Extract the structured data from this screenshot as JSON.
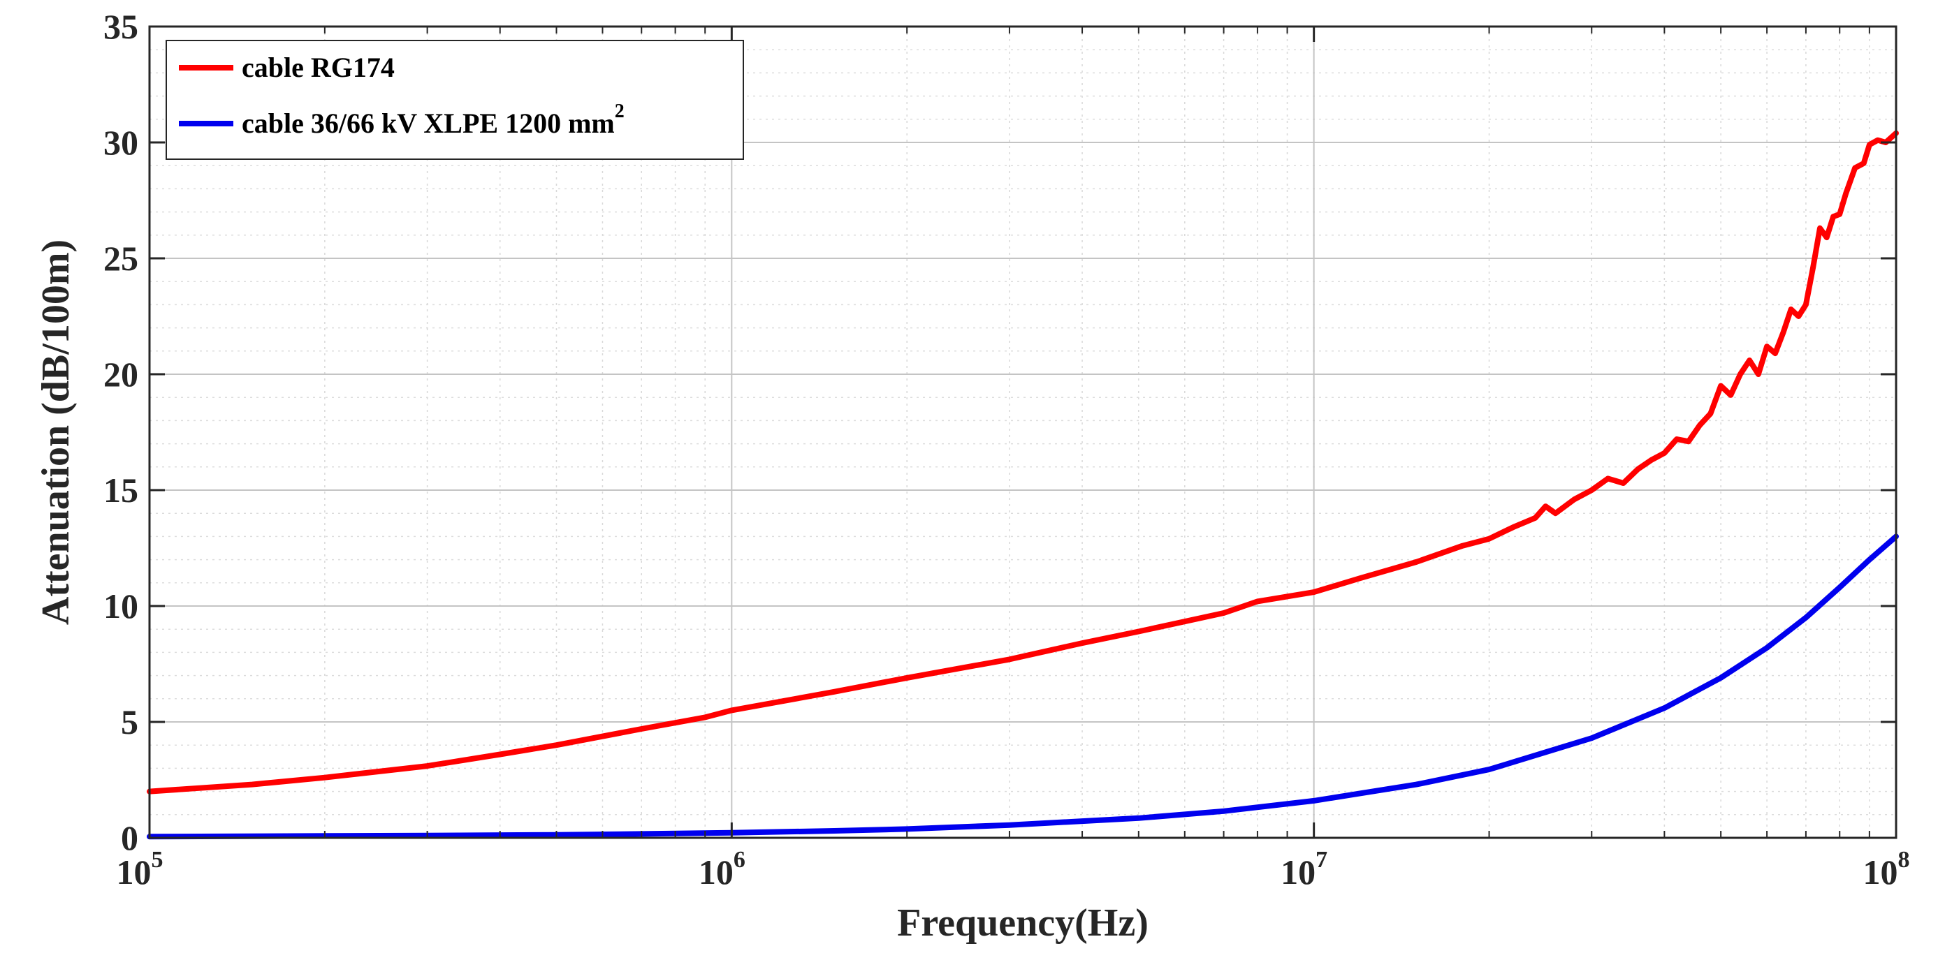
{
  "chart_data": {
    "type": "line",
    "xscale": "log",
    "xlim": [
      100000,
      100000000
    ],
    "ylim": [
      0,
      35
    ],
    "xlabel": "Frequency(Hz)",
    "ylabel": "Attenuation (dB/100m)",
    "grid": "major+minor",
    "legend_position": "top-left",
    "xticks": [
      {
        "value": 100000,
        "base": "10",
        "exp": "5"
      },
      {
        "value": 1000000,
        "base": "10",
        "exp": "6"
      },
      {
        "value": 10000000,
        "base": "10",
        "exp": "7"
      },
      {
        "value": 100000000,
        "base": "10",
        "exp": "8"
      }
    ],
    "yticks": [
      0,
      5,
      10,
      15,
      20,
      25,
      30,
      35
    ],
    "series": [
      {
        "name": "cable RG174",
        "color": "#ff0000",
        "x": [
          100000,
          150000,
          200000,
          300000,
          400000,
          500000,
          700000,
          900000,
          1000000,
          1500000,
          2000000,
          3000000,
          4000000,
          5000000,
          7000000,
          8000000,
          10000000,
          12000000,
          15000000,
          18000000,
          20000000,
          22000000,
          24000000,
          25000000,
          26000000,
          28000000,
          30000000,
          32000000,
          34000000,
          36000000,
          38000000,
          40000000,
          42000000,
          44000000,
          46000000,
          48000000,
          50000000,
          52000000,
          54000000,
          56000000,
          58000000,
          60000000,
          62000000,
          64000000,
          66000000,
          68000000,
          70000000,
          72000000,
          74000000,
          76000000,
          78000000,
          80000000,
          82000000,
          85000000,
          88000000,
          90000000,
          93000000,
          96000000,
          100000000
        ],
        "values": [
          2.0,
          2.3,
          2.6,
          3.1,
          3.6,
          4.0,
          4.7,
          5.2,
          5.5,
          6.3,
          6.9,
          7.7,
          8.4,
          8.9,
          9.7,
          10.2,
          10.6,
          11.2,
          11.9,
          12.6,
          12.9,
          13.4,
          13.8,
          14.3,
          14.0,
          14.6,
          15.0,
          15.5,
          15.3,
          15.9,
          16.3,
          16.6,
          17.2,
          17.1,
          17.8,
          18.3,
          19.5,
          19.1,
          20.0,
          20.6,
          20.0,
          21.2,
          20.9,
          21.8,
          22.8,
          22.5,
          23.0,
          24.6,
          26.3,
          25.9,
          26.8,
          26.9,
          27.8,
          28.9,
          29.1,
          29.9,
          30.1,
          30.0,
          30.4
        ]
      },
      {
        "name": "cable 36/66 kV XLPE 1200 mm",
        "name_superscript": "2",
        "color": "#0000ee",
        "x": [
          100000,
          200000,
          300000,
          500000,
          700000,
          1000000,
          1500000,
          2000000,
          3000000,
          5000000,
          7000000,
          10000000,
          15000000,
          20000000,
          30000000,
          40000000,
          50000000,
          60000000,
          70000000,
          80000000,
          90000000,
          100000000
        ],
        "values": [
          0.05,
          0.08,
          0.1,
          0.13,
          0.17,
          0.22,
          0.3,
          0.38,
          0.55,
          0.85,
          1.15,
          1.6,
          2.3,
          2.95,
          4.3,
          5.6,
          6.9,
          8.2,
          9.5,
          10.8,
          12.0,
          13.0
        ]
      }
    ]
  }
}
